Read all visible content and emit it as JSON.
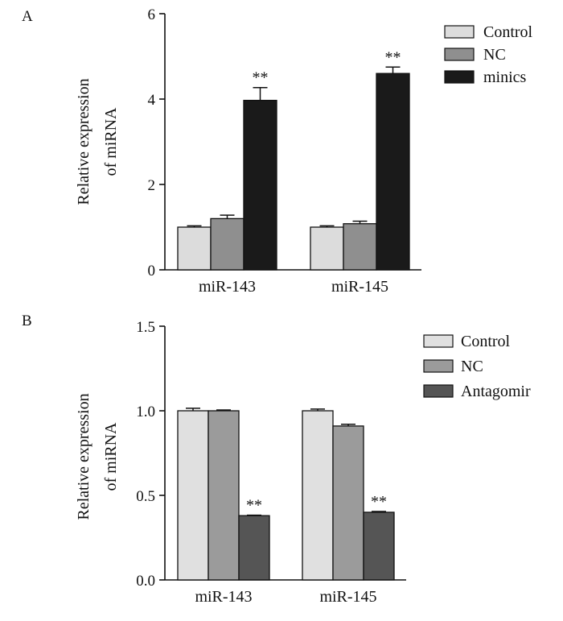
{
  "chart_data": [
    {
      "panel": "A",
      "type": "bar",
      "ylabel_lines": [
        "Relative expression",
        "of miRNA"
      ],
      "categories": [
        "miR-143",
        "miR-145"
      ],
      "ylim": [
        0,
        6
      ],
      "yticks": [
        "0",
        "2",
        "4",
        "6"
      ],
      "ytick_values": [
        0,
        2,
        4,
        6
      ],
      "legend_position": "top-right",
      "series": [
        {
          "name": "Control",
          "color": "#dcdcdc",
          "values": [
            1.0,
            1.0
          ],
          "errors": [
            0.03,
            0.03
          ],
          "labels": [
            "",
            ""
          ]
        },
        {
          "name": "NC",
          "color": "#8f8f8f",
          "values": [
            1.2,
            1.08
          ],
          "errors": [
            0.08,
            0.06
          ],
          "labels": [
            "",
            ""
          ]
        },
        {
          "name": "minics",
          "color": "#1a1a1a",
          "values": [
            3.97,
            4.6
          ],
          "errors": [
            0.3,
            0.15
          ],
          "labels": [
            "**",
            "**"
          ]
        }
      ]
    },
    {
      "panel": "B",
      "type": "bar",
      "ylabel_lines": [
        "Relative expression",
        "of miRNA"
      ],
      "categories": [
        "miR-143",
        "miR-145"
      ],
      "ylim": [
        0,
        1.5
      ],
      "yticks": [
        "0.0",
        "0.5",
        "1.0",
        "1.5"
      ],
      "ytick_values": [
        0,
        0.5,
        1.0,
        1.5
      ],
      "legend_position": "top-right",
      "series": [
        {
          "name": "Control",
          "color": "#e0e0e0",
          "values": [
            1.0,
            1.0
          ],
          "errors": [
            0.015,
            0.01
          ],
          "labels": [
            "",
            ""
          ]
        },
        {
          "name": "NC",
          "color": "#9b9b9b",
          "values": [
            1.0,
            0.91
          ],
          "errors": [
            0.005,
            0.01
          ],
          "labels": [
            "",
            ""
          ]
        },
        {
          "name": "Antagomir",
          "color": "#555555",
          "values": [
            0.38,
            0.4
          ],
          "errors": [
            0.003,
            0.005
          ],
          "labels": [
            "**",
            "**"
          ]
        }
      ]
    }
  ]
}
